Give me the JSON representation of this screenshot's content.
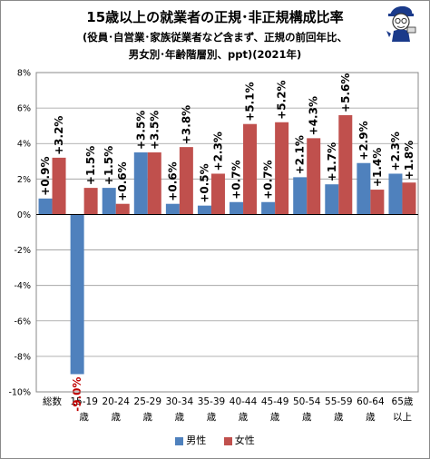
{
  "title": {
    "line1": "15歳以上の就業者の正規･非正規構成比率",
    "line2": "(役員･自営業･家族従業者など含まず、正規の前回年比、",
    "line3": "男女別･年齢階層別、ppt)(2021年)"
  },
  "colors": {
    "series_male": "#4f81bd",
    "series_female": "#c0504d",
    "negative_label": "#c00000"
  },
  "mascot_icon": "reporter-mascot-icon",
  "chart_data": {
    "type": "bar",
    "categories": [
      [
        "総数"
      ],
      [
        "15-19",
        "歳"
      ],
      [
        "20-24",
        "歳"
      ],
      [
        "25-29",
        "歳"
      ],
      [
        "30-34",
        "歳"
      ],
      [
        "35-39",
        "歳"
      ],
      [
        "40-44",
        "歳"
      ],
      [
        "45-49",
        "歳"
      ],
      [
        "50-54",
        "歳"
      ],
      [
        "55-59",
        "歳"
      ],
      [
        "60-64",
        "歳"
      ],
      [
        "65歳",
        "以上"
      ]
    ],
    "series": [
      {
        "name": "男性",
        "values": [
          0.9,
          -9.0,
          1.5,
          3.5,
          0.6,
          0.5,
          0.7,
          0.7,
          2.1,
          1.7,
          2.9,
          2.3
        ],
        "labels": [
          "+0.9%",
          "-9.0%",
          "+1.5%",
          "+3.5%",
          "+0.6%",
          "+0.5%",
          "+0.7%",
          "+0.7%",
          "+2.1%",
          "+1.7%",
          "+2.9%",
          "+2.3%"
        ]
      },
      {
        "name": "女性",
        "values": [
          3.2,
          1.5,
          0.6,
          3.5,
          3.8,
          2.3,
          5.1,
          5.2,
          4.3,
          5.6,
          1.4,
          1.8
        ],
        "labels": [
          "+3.2%",
          "+1.5%",
          "+0.6%",
          "+3.5%",
          "+3.8%",
          "+2.3%",
          "+5.1%",
          "+5.2%",
          "+4.3%",
          "+5.6%",
          "+1.4%",
          "+1.8%"
        ]
      }
    ],
    "ylim": [
      -10,
      8
    ],
    "yticks": [
      8,
      6,
      4,
      2,
      0,
      -2,
      -4,
      -6,
      -8,
      -10
    ],
    "ytick_labels": [
      "8%",
      "6%",
      "4%",
      "2%",
      "0%",
      "-2%",
      "-4%",
      "-6%",
      "-8%",
      "-10%"
    ],
    "legend_position": "bottom",
    "grid": true
  }
}
